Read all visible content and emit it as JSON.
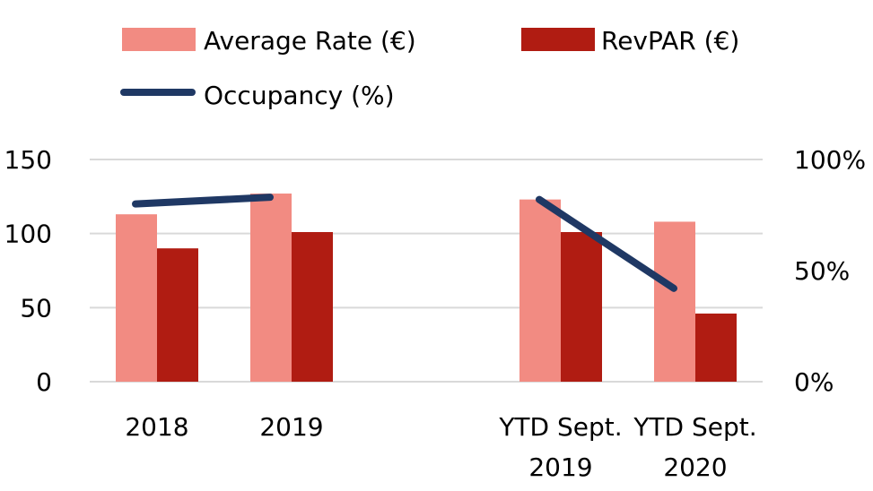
{
  "chart_data": {
    "type": "bar",
    "title": "",
    "categories": [
      [
        "2018"
      ],
      [
        "2019"
      ],
      [],
      [
        "YTD Sept.",
        "2019"
      ],
      [
        "YTD Sept.",
        "2020"
      ]
    ],
    "series": [
      {
        "name": "Average Rate (€)",
        "kind": "bar",
        "axis": "left",
        "color": "#f28b82",
        "values": [
          113,
          127,
          null,
          123,
          108
        ]
      },
      {
        "name": "RevPAR (€)",
        "kind": "bar",
        "axis": "left",
        "color": "#b01c12",
        "values": [
          90,
          101,
          null,
          101,
          46
        ]
      },
      {
        "name": "Occupancy (%)",
        "kind": "line",
        "axis": "right",
        "color": "#1f3864",
        "segments": [
          {
            "values": [
              80,
              83
            ],
            "category_index": [
              0,
              1
            ]
          },
          {
            "values": [
              82,
              42
            ],
            "category_index": [
              3,
              4
            ]
          }
        ]
      }
    ],
    "y_left": {
      "ticks": [
        "0",
        "50",
        "100",
        "150"
      ],
      "tick_values": [
        0,
        50,
        100,
        150
      ],
      "ylim": [
        0,
        150
      ]
    },
    "y_right": {
      "ticks": [
        "0%",
        "50%",
        "100%"
      ],
      "tick_values": [
        0,
        50,
        100
      ],
      "ylim": [
        0,
        100
      ]
    },
    "grid": true,
    "legend_position": "top"
  }
}
